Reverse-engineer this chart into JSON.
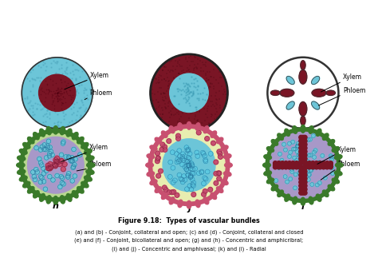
{
  "title": "Figure 9.18:  Types of vascular bundles",
  "caption_lines": [
    "(a) and (b) - Conjoint, collateral and open; (c) and (d) - Conjoint, collateral and closed",
    "(e) and (f) - Conjoint, bicollateral and open; (g) and (h) - Concentric and amphicribral;",
    "(i) and (j) - Concentric and amphivasal; (k) and (l) - Radial"
  ],
  "xylem_color": "#7a1525",
  "phloem_color": "#6cc5d8",
  "green_outer": "#3a7a2a",
  "green_light": "#b8d890",
  "pink_cells": "#c85070",
  "lavender": "#a898c8",
  "light_yellow": "#e8edb0",
  "xylem_texture": "#8a2535",
  "phloem_texture": "#5ab0c8"
}
